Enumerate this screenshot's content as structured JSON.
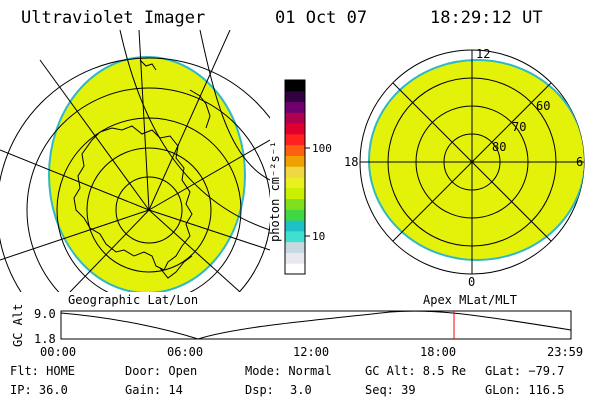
{
  "header": {
    "instrument": "Ultraviolet Imager",
    "date": "01 Oct 07",
    "time": "18:29:12 UT"
  },
  "colors": {
    "aurora_fill": "#e4f20a",
    "aurora_edge": "#2fb8c8",
    "coast": "#000000",
    "grid": "#000000",
    "marker": "#ff0000"
  },
  "left_panel": {
    "label": "Geographic Lat/Lon"
  },
  "right_panel": {
    "label": "Apex MLat/MLT",
    "mlt_labels": [
      "12",
      "18",
      "6",
      "0"
    ],
    "lat_labels": [
      "60",
      "70",
      "80"
    ]
  },
  "colorbar": {
    "unit_label": "photon cm⁻²s⁻¹",
    "tick_labels": [
      "100",
      "10"
    ],
    "colors": [
      "#ffffff",
      "#e8e8f0",
      "#c8d8e0",
      "#40e0d0",
      "#20c0c8",
      "#40d840",
      "#80e020",
      "#c8f000",
      "#e8f020",
      "#f0d840",
      "#f0a000",
      "#ff6010",
      "#ff2020",
      "#e00030",
      "#b00050",
      "#700070",
      "#300040",
      "#000000"
    ]
  },
  "altitude_plot": {
    "ylabel": "GC Alt",
    "ytick_labels": [
      "9.0",
      "1.8"
    ],
    "xtick_labels": [
      "00:00",
      "06:00",
      "12:00",
      "18:00",
      "23:59"
    ],
    "marker_time": "18:29"
  },
  "info": {
    "flt": "Flt: HOME",
    "ip": "IP: 36.0",
    "door": "Door: Open",
    "gain": "Gain: 14",
    "mode": "Mode: Normal",
    "dsp_label": "Dsp:",
    "dsp_value": "3.0",
    "gc_alt": "GC Alt: 8.5 Re",
    "seq": "Seq: 39",
    "glat": "GLat: −79.7",
    "glon": "GLon: 116.5"
  }
}
